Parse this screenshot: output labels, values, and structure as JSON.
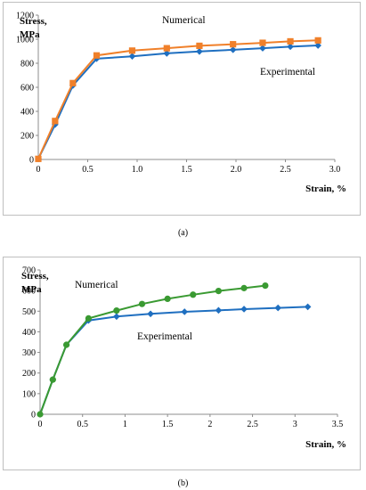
{
  "chart_data": [
    {
      "type": "line",
      "panel_label": "(a)",
      "ylabel_line1": "Stress,",
      "ylabel_line2": "MPa",
      "xlabel": "Strain, %",
      "xlim": [
        0,
        3.0
      ],
      "ylim": [
        0,
        1200
      ],
      "x_ticks": [
        "0",
        "0.5",
        "1.0",
        "1.5",
        "2.0",
        "2.5",
        "3.0"
      ],
      "y_ticks": [
        "0",
        "200",
        "400",
        "600",
        "800",
        "1000",
        "1200"
      ],
      "grid": false,
      "series": [
        {
          "name": "Numerical",
          "color": "#f0802a",
          "marker": "square",
          "points": [
            [
              0,
              5
            ],
            [
              0.17,
              320
            ],
            [
              0.35,
              635
            ],
            [
              0.59,
              865
            ],
            [
              0.95,
              905
            ],
            [
              1.3,
              925
            ],
            [
              1.63,
              945
            ],
            [
              1.97,
              958
            ],
            [
              2.27,
              970
            ],
            [
              2.55,
              982
            ],
            [
              2.83,
              990
            ]
          ]
        },
        {
          "name": "Experimental",
          "color": "#1f6fc0",
          "marker": "diamond",
          "points": [
            [
              0,
              5
            ],
            [
              0.17,
              290
            ],
            [
              0.35,
              615
            ],
            [
              0.59,
              838
            ],
            [
              0.95,
              858
            ],
            [
              1.3,
              882
            ],
            [
              1.63,
              898
            ],
            [
              1.97,
              912
            ],
            [
              2.27,
              925
            ],
            [
              2.55,
              938
            ],
            [
              2.83,
              948
            ]
          ]
        }
      ]
    },
    {
      "type": "line",
      "panel_label": "(b)",
      "ylabel_line1": "Stress,",
      "ylabel_line2": "MPa",
      "xlabel": "Strain, %",
      "xlim": [
        0,
        3.5
      ],
      "ylim": [
        0,
        700
      ],
      "x_ticks": [
        "0",
        "0.5",
        "1",
        "1.5",
        "2",
        "2.5",
        "3",
        "3.5"
      ],
      "y_ticks": [
        "0",
        "100",
        "200",
        "300",
        "400",
        "500",
        "600",
        "700"
      ],
      "grid": false,
      "series": [
        {
          "name": "Numerical",
          "color": "#3a9a32",
          "marker": "circle",
          "points": [
            [
              0,
              0
            ],
            [
              0.15,
              168
            ],
            [
              0.31,
              337
            ],
            [
              0.57,
              465
            ],
            [
              0.9,
              503
            ],
            [
              1.2,
              535
            ],
            [
              1.5,
              560
            ],
            [
              1.8,
              580
            ],
            [
              2.1,
              598
            ],
            [
              2.4,
              612
            ],
            [
              2.65,
              624
            ]
          ]
        },
        {
          "name": "Experimental",
          "color": "#1f6fc0",
          "marker": "diamond",
          "points": [
            [
              0,
              0
            ],
            [
              0.15,
              168
            ],
            [
              0.31,
              337
            ],
            [
              0.57,
              455
            ],
            [
              0.9,
              474
            ],
            [
              1.3,
              487
            ],
            [
              1.7,
              497
            ],
            [
              2.1,
              504
            ],
            [
              2.4,
              510
            ],
            [
              2.8,
              516
            ],
            [
              3.15,
              521
            ]
          ]
        }
      ]
    }
  ]
}
